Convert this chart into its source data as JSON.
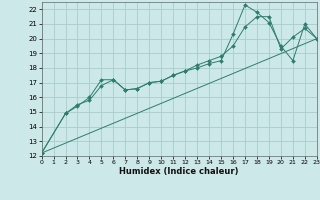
{
  "xlabel": "Humidex (Indice chaleur)",
  "ylabel": "",
  "background_color": "#cce8e8",
  "grid_color": "#aacccc",
  "line_color": "#2e7d6e",
  "xlim": [
    0,
    23
  ],
  "ylim": [
    12,
    22.5
  ],
  "xticks": [
    0,
    1,
    2,
    3,
    4,
    5,
    6,
    7,
    8,
    9,
    10,
    11,
    12,
    13,
    14,
    15,
    16,
    17,
    18,
    19,
    20,
    21,
    22,
    23
  ],
  "yticks": [
    12,
    13,
    14,
    15,
    16,
    17,
    18,
    19,
    20,
    21,
    22
  ],
  "series": [
    {
      "x": [
        0,
        2,
        3,
        4,
        5,
        6,
        7,
        8,
        9,
        10,
        11,
        12,
        13,
        14,
        15,
        16,
        17,
        18,
        19,
        20,
        21,
        22,
        23
      ],
      "y": [
        12.2,
        14.9,
        15.4,
        16.0,
        17.2,
        17.2,
        16.5,
        16.6,
        17.0,
        17.1,
        17.5,
        17.8,
        18.0,
        18.3,
        18.5,
        20.3,
        22.3,
        21.8,
        21.1,
        19.5,
        18.5,
        21.0,
        20.0
      ]
    },
    {
      "x": [
        0,
        2,
        3,
        4,
        5,
        6,
        7,
        8,
        9,
        10,
        11,
        12,
        13,
        14,
        15,
        16,
        17,
        18,
        19,
        20,
        21,
        22,
        23
      ],
      "y": [
        12.2,
        14.9,
        15.5,
        15.8,
        16.8,
        17.2,
        16.5,
        16.6,
        17.0,
        17.1,
        17.5,
        17.8,
        18.2,
        18.5,
        18.8,
        19.5,
        20.8,
        21.5,
        21.5,
        19.3,
        20.1,
        20.7,
        20.0
      ]
    },
    {
      "x": [
        0,
        23
      ],
      "y": [
        12.2,
        20.0
      ]
    }
  ]
}
